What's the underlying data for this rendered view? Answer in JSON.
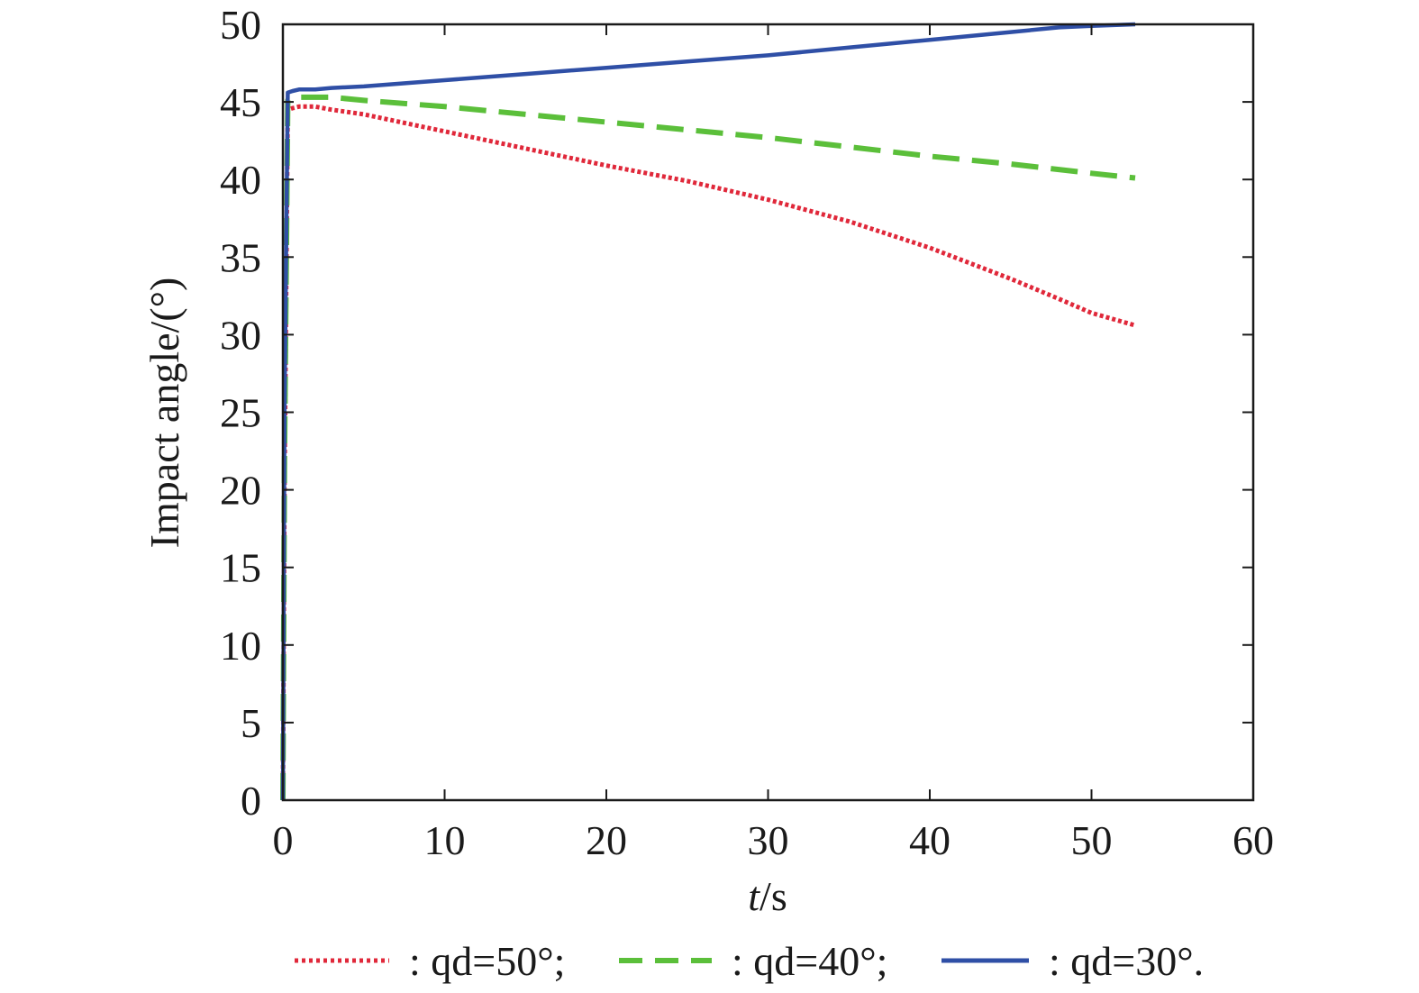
{
  "chart_data": {
    "type": "line",
    "xlabel_italic": "t",
    "xlabel_rest": "/s",
    "ylabel": "Impact angle/(°)",
    "xlim": [
      0,
      60
    ],
    "ylim": [
      0,
      50
    ],
    "xticks": [
      0,
      10,
      20,
      30,
      40,
      50,
      60
    ],
    "yticks": [
      0,
      5,
      10,
      15,
      20,
      25,
      30,
      35,
      40,
      45,
      50
    ],
    "grid": false,
    "legend_position": "bottom",
    "series": [
      {
        "name": ": qd=50°;",
        "color": "#e0283a",
        "style": "dotted",
        "x": [
          0,
          0.1,
          0.3,
          0.6,
          1,
          1.5,
          2,
          3,
          5,
          10,
          15,
          20,
          25,
          30,
          35,
          40,
          45,
          48,
          50,
          52.7
        ],
        "y": [
          0,
          20,
          44.5,
          44.6,
          44.7,
          44.7,
          44.7,
          44.5,
          44.2,
          43.1,
          42.0,
          40.9,
          39.9,
          38.7,
          37.3,
          35.6,
          33.6,
          32.3,
          31.4,
          30.6
        ]
      },
      {
        "name": ": qd=40°;",
        "color": "#5bbf3a",
        "style": "dashed",
        "x": [
          0,
          0.1,
          0.3,
          0.6,
          1,
          2,
          3,
          5,
          10,
          15,
          20,
          25,
          30,
          35,
          40,
          45,
          50,
          52.7
        ],
        "y": [
          0,
          22,
          45.1,
          45.2,
          45.3,
          45.3,
          45.3,
          45.1,
          44.7,
          44.2,
          43.7,
          43.2,
          42.7,
          42.1,
          41.5,
          41.0,
          40.4,
          40.1
        ]
      },
      {
        "name": ": qd=30°.",
        "color": "#2f4fa6",
        "style": "solid",
        "x": [
          0,
          0.1,
          0.3,
          0.6,
          1,
          1.5,
          2,
          3,
          5,
          10,
          15,
          20,
          25,
          30,
          35,
          40,
          45,
          48,
          50,
          52.7
        ],
        "y": [
          0,
          25,
          45.6,
          45.7,
          45.8,
          45.8,
          45.8,
          45.9,
          46.0,
          46.4,
          46.8,
          47.2,
          47.6,
          48.0,
          48.5,
          49.0,
          49.5,
          49.8,
          49.9,
          50.0
        ]
      }
    ]
  }
}
